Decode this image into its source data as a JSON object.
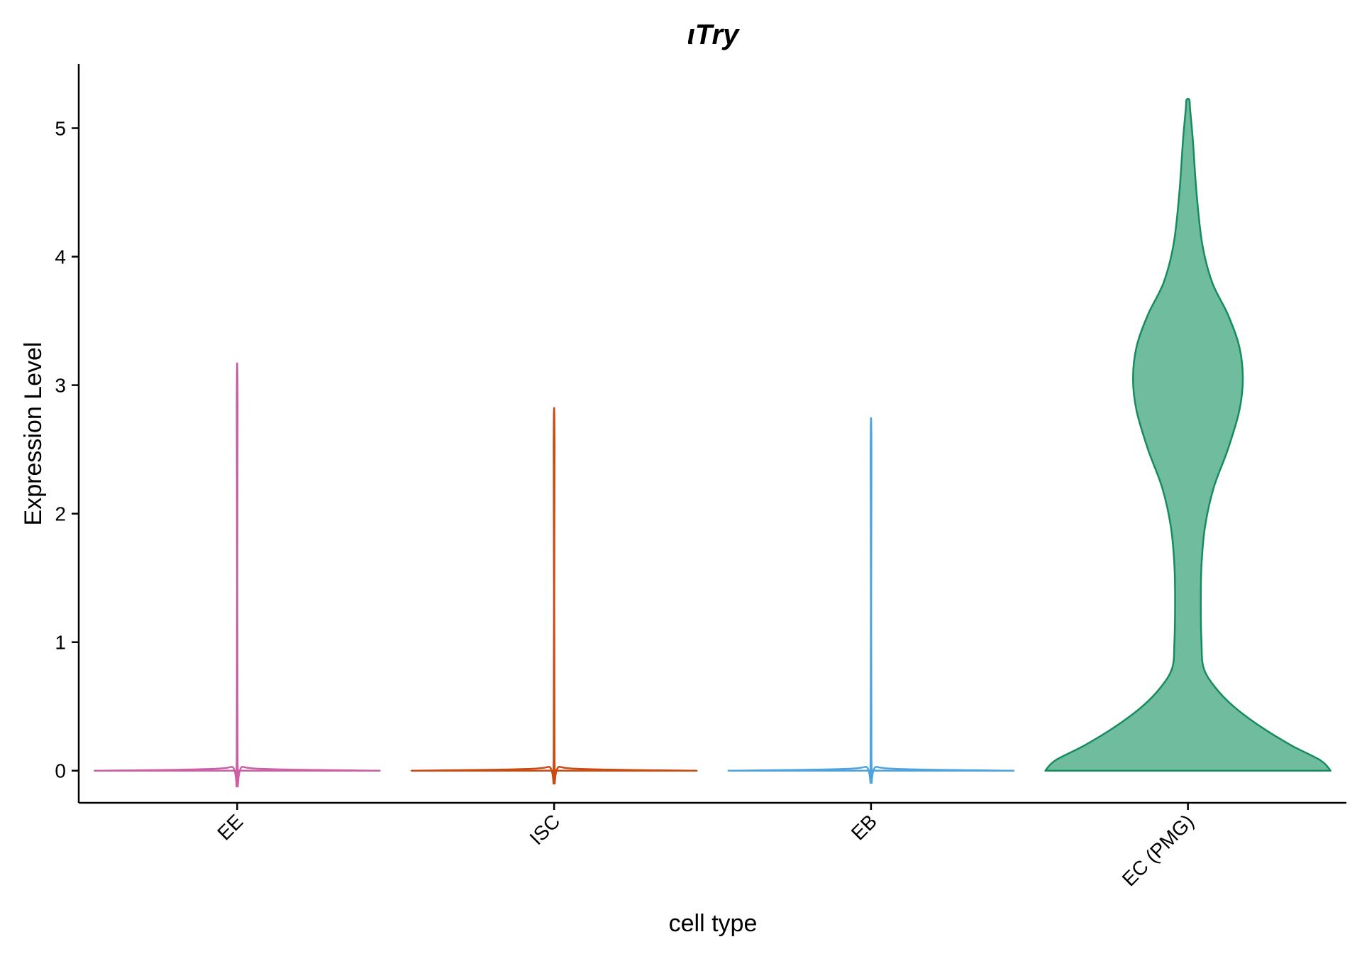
{
  "chart_data": {
    "type": "violin",
    "title": "ιTry",
    "xlabel": "cell type",
    "ylabel": "Expression Level",
    "ylim": [
      -0.25,
      5.5
    ],
    "yticks": [
      0,
      1,
      2,
      3,
      4,
      5
    ],
    "grid": false,
    "legend": "none",
    "categories": [
      "EE",
      "ISC",
      "EB",
      "EC (PMG)"
    ],
    "series": [
      {
        "category": "EE",
        "color": "#CC5FA6",
        "fill": "none",
        "max": 2.83,
        "profile": [
          [
            0,
            1.0
          ],
          [
            0.01,
            0.3
          ],
          [
            0.03,
            0.04
          ],
          [
            0.1,
            0.003
          ],
          [
            2.83,
            0.003
          ]
        ]
      },
      {
        "category": "ISC",
        "color": "#CC4A10",
        "fill": "none",
        "max": 2.52,
        "profile": [
          [
            0,
            1.0
          ],
          [
            0.01,
            0.3
          ],
          [
            0.03,
            0.04
          ],
          [
            0.1,
            0.003
          ],
          [
            2.52,
            0.003
          ]
        ]
      },
      {
        "category": "EB",
        "color": "#4CA3DD",
        "fill": "none",
        "max": 2.45,
        "profile": [
          [
            0,
            1.0
          ],
          [
            0.01,
            0.3
          ],
          [
            0.03,
            0.04
          ],
          [
            0.1,
            0.003
          ],
          [
            2.45,
            0.003
          ]
        ]
      },
      {
        "category": "EC (PMG)",
        "color": "#168C5E",
        "fill": "#70BC9E",
        "max": 5.22,
        "profile": [
          [
            0,
            1.0
          ],
          [
            0.08,
            0.93
          ],
          [
            0.2,
            0.72
          ],
          [
            0.35,
            0.5
          ],
          [
            0.5,
            0.32
          ],
          [
            0.65,
            0.19
          ],
          [
            0.8,
            0.11
          ],
          [
            1.0,
            0.095
          ],
          [
            1.3,
            0.09
          ],
          [
            1.6,
            0.095
          ],
          [
            1.9,
            0.12
          ],
          [
            2.2,
            0.18
          ],
          [
            2.5,
            0.28
          ],
          [
            2.8,
            0.36
          ],
          [
            3.05,
            0.385
          ],
          [
            3.3,
            0.36
          ],
          [
            3.55,
            0.28
          ],
          [
            3.8,
            0.17
          ],
          [
            4.1,
            0.1
          ],
          [
            4.5,
            0.06
          ],
          [
            4.9,
            0.035
          ],
          [
            5.15,
            0.015
          ],
          [
            5.22,
            0.01
          ]
        ]
      }
    ]
  }
}
